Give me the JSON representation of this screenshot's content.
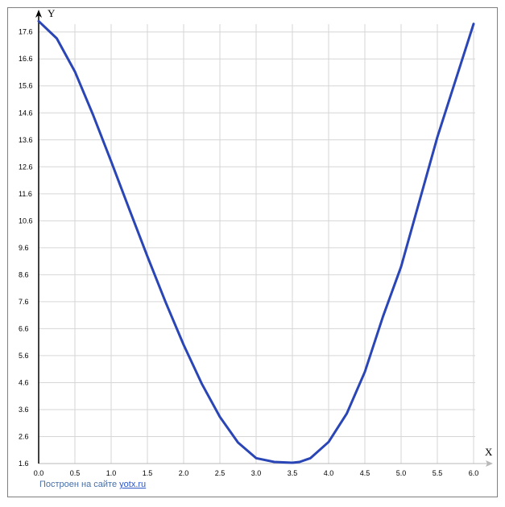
{
  "chart_data": {
    "type": "line",
    "title": "",
    "xlabel": "X",
    "ylabel": "Y",
    "xlim": [
      0.0,
      6.0
    ],
    "ylim": [
      1.6,
      17.8
    ],
    "grid": true,
    "x_ticks": [
      "0.0",
      "0.5",
      "1.0",
      "1.5",
      "2.0",
      "2.5",
      "3.0",
      "3.5",
      "4.0",
      "4.5",
      "5.0",
      "5.5",
      "6.0"
    ],
    "y_ticks": [
      "1.6",
      "2.6",
      "3.6",
      "4.6",
      "5.6",
      "6.6",
      "7.6",
      "8.6",
      "9.6",
      "10.6",
      "11.6",
      "12.6",
      "13.6",
      "14.6",
      "15.6",
      "16.6",
      "17.6"
    ],
    "series": [
      {
        "color": "#2a45b5",
        "x": [
          0.0,
          0.25,
          0.5,
          0.75,
          1.0,
          1.25,
          1.5,
          1.75,
          2.0,
          2.25,
          2.5,
          2.75,
          3.0,
          3.25,
          3.5,
          3.6,
          3.75,
          4.0,
          4.25,
          4.5,
          4.75,
          5.0,
          5.25,
          5.5,
          5.75,
          6.0
        ],
        "y": [
          18.0,
          17.36,
          16.13,
          14.53,
          12.8,
          11.03,
          9.28,
          7.59,
          6.0,
          4.56,
          3.33,
          2.38,
          1.8,
          1.66,
          1.63,
          1.66,
          1.8,
          2.4,
          3.45,
          5.0,
          7.05,
          8.9,
          11.3,
          13.7,
          15.8,
          17.9
        ]
      }
    ]
  },
  "credit": {
    "prefix": "Построен на сайте ",
    "link": "yotx.ru"
  }
}
